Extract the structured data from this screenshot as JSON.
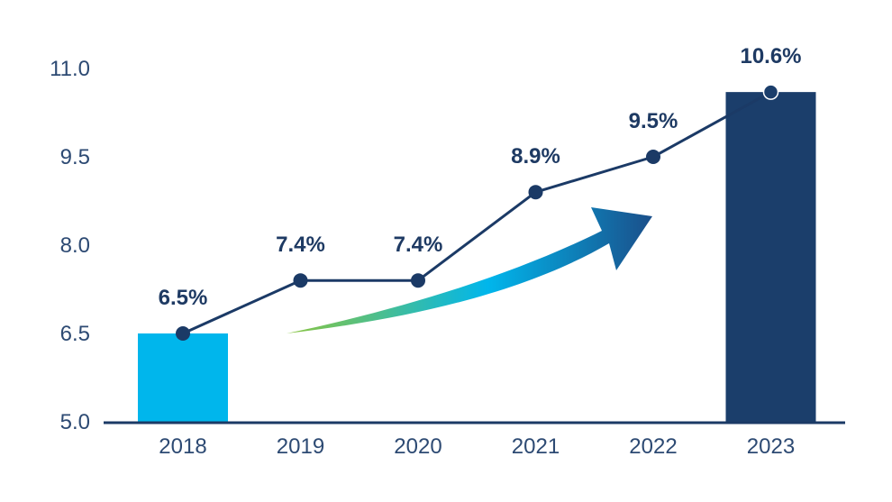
{
  "chart_data": {
    "type": "bar+line",
    "title": "",
    "xlabel": "",
    "ylabel": "",
    "ylim": [
      5.0,
      11.0
    ],
    "yticks": [
      {
        "value": 5.0,
        "label": "5.0"
      },
      {
        "value": 6.5,
        "label": "6.5"
      },
      {
        "value": 8.0,
        "label": "8.0"
      },
      {
        "value": 9.5,
        "label": "9.5"
      },
      {
        "value": 11.0,
        "label": "11.0"
      }
    ],
    "categories": [
      "2018",
      "2019",
      "2020",
      "2021",
      "2022",
      "2023"
    ],
    "series": [
      {
        "name": "line",
        "values": [
          6.5,
          7.4,
          7.4,
          8.9,
          9.5,
          10.6
        ]
      }
    ],
    "bars": [
      {
        "category": "2018",
        "value": 6.5,
        "color": "#00b6ec"
      },
      {
        "category": "2023",
        "value": 10.6,
        "color": "#1b3e6b"
      }
    ],
    "data_labels": [
      "6.5%",
      "7.4%",
      "7.4%",
      "8.9%",
      "9.5%",
      "10.6%"
    ],
    "colors": {
      "line": "#1b3a66",
      "axis": "#1b3a66",
      "tick_text": "#2d4a73",
      "label_text": "#1e3a63",
      "arrow_gradient": [
        "#8bc53f",
        "#00b6ec",
        "#1b4f8a"
      ]
    },
    "annotation": "upward-trend-arrow"
  }
}
